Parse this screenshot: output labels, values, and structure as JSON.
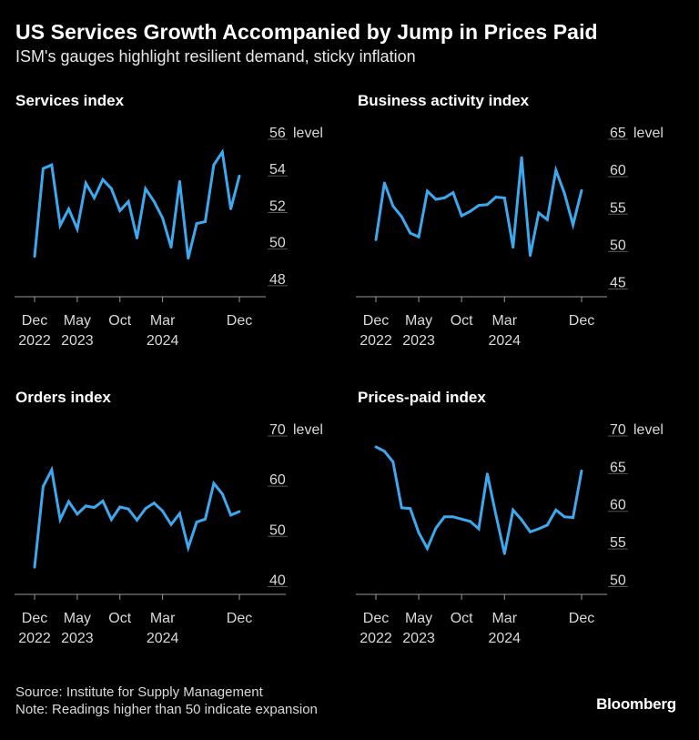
{
  "title": "US Services Growth Accompanied by Jump in Prices Paid",
  "subtitle": "ISM's gauges highlight resilient demand, sticky inflation",
  "source": "Source: Institute for Supply Management",
  "note": "Note: Readings higher than 50 indicate expansion",
  "brand": "Bloomberg",
  "line_color": "#3ea8ee",
  "chart_data": [
    {
      "type": "line",
      "title": "Services index",
      "unit_label": "level",
      "ylim": [
        47,
        56
      ],
      "yticks": [
        56,
        54,
        52,
        50,
        48
      ],
      "xticks": [
        {
          "index": 0,
          "label": "Dec",
          "sub": "2022"
        },
        {
          "index": 5,
          "label": "May",
          "sub": "2023"
        },
        {
          "index": 10,
          "label": "Oct",
          "sub": ""
        },
        {
          "index": 15,
          "label": "Mar",
          "sub": "2024"
        },
        {
          "index": 24,
          "label": "Dec",
          "sub": ""
        }
      ],
      "values": [
        49.2,
        54.0,
        54.2,
        50.9,
        51.8,
        50.7,
        53.2,
        52.4,
        53.4,
        52.9,
        51.7,
        52.2,
        50.2,
        52.9,
        52.2,
        51.3,
        49.7,
        53.3,
        49.1,
        51.0,
        51.1,
        54.2,
        54.9,
        51.8,
        53.6
      ]
    },
    {
      "type": "line",
      "title": "Business activity index",
      "unit_label": "level",
      "ylim": [
        43,
        65
      ],
      "yticks": [
        65,
        60,
        55,
        50,
        45
      ],
      "xticks": [
        {
          "index": 0,
          "label": "Dec",
          "sub": "2022"
        },
        {
          "index": 5,
          "label": "May",
          "sub": "2023"
        },
        {
          "index": 10,
          "label": "Oct",
          "sub": ""
        },
        {
          "index": 15,
          "label": "Mar",
          "sub": "2024"
        },
        {
          "index": 24,
          "label": "Dec",
          "sub": ""
        }
      ],
      "values": [
        50.6,
        58.2,
        55.1,
        53.7,
        51.5,
        51.0,
        57.1,
        56.0,
        56.2,
        56.9,
        53.8,
        54.4,
        55.2,
        55.3,
        56.3,
        56.2,
        49.6,
        61.6,
        48.5,
        54.2,
        53.3,
        59.9,
        56.8,
        52.6,
        57.2
      ]
    },
    {
      "type": "line",
      "title": "Orders index",
      "unit_label": "level",
      "ylim": [
        37,
        70
      ],
      "yticks": [
        70,
        60,
        50,
        40
      ],
      "xticks": [
        {
          "index": 0,
          "label": "Dec",
          "sub": "2022"
        },
        {
          "index": 5,
          "label": "May",
          "sub": "2023"
        },
        {
          "index": 10,
          "label": "Oct",
          "sub": ""
        },
        {
          "index": 15,
          "label": "Mar",
          "sub": "2024"
        },
        {
          "index": 24,
          "label": "Dec",
          "sub": ""
        }
      ],
      "values": [
        42.4,
        58.5,
        61.8,
        51.9,
        55.5,
        53.0,
        54.6,
        54.3,
        55.6,
        51.9,
        54.4,
        54.0,
        51.8,
        54.1,
        55.2,
        53.6,
        50.9,
        53.1,
        46.3,
        51.4,
        52.0,
        59.1,
        57.0,
        52.8,
        53.5
      ]
    },
    {
      "type": "line",
      "title": "Prices-paid index",
      "unit_label": "level",
      "ylim": [
        48,
        70
      ],
      "yticks": [
        70,
        65,
        60,
        55,
        50
      ],
      "xticks": [
        {
          "index": 0,
          "label": "Dec",
          "sub": "2022"
        },
        {
          "index": 5,
          "label": "May",
          "sub": "2023"
        },
        {
          "index": 10,
          "label": "Oct",
          "sub": ""
        },
        {
          "index": 15,
          "label": "Mar",
          "sub": "2024"
        },
        {
          "index": 24,
          "label": "Dec",
          "sub": ""
        }
      ],
      "values": [
        67.6,
        67.0,
        65.6,
        59.5,
        59.4,
        56.2,
        54.1,
        56.8,
        58.3,
        58.3,
        58.0,
        57.7,
        56.7,
        64.0,
        58.6,
        53.4,
        59.2,
        57.9,
        56.3,
        56.7,
        57.2,
        59.2,
        58.3,
        58.2,
        64.4
      ]
    }
  ]
}
